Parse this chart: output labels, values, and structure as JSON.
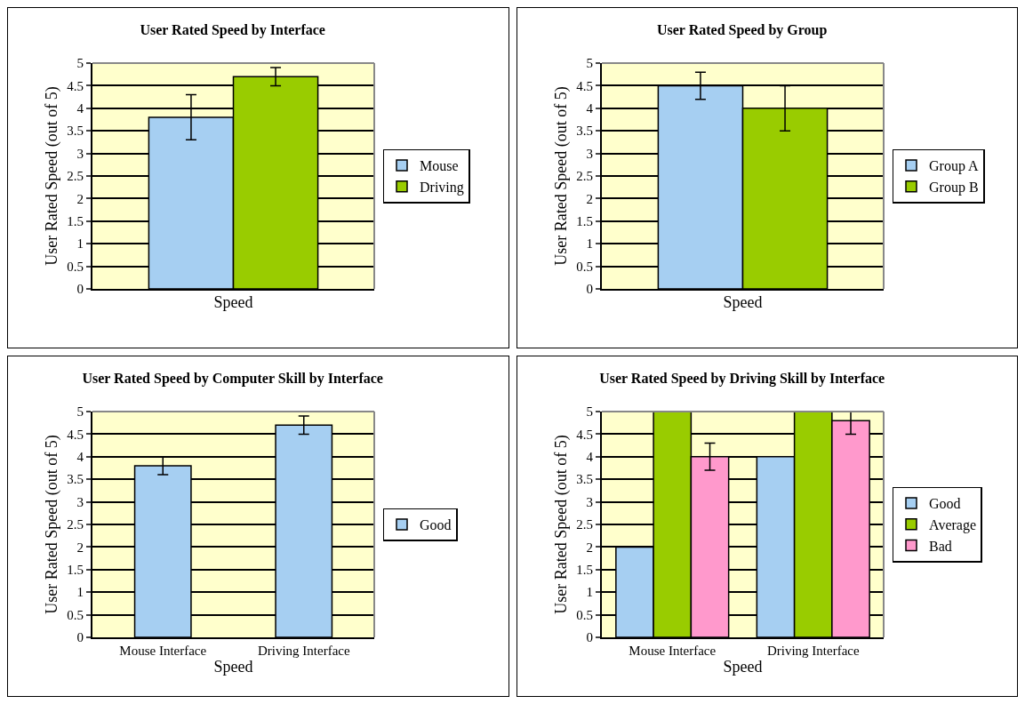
{
  "chart_data": [
    {
      "type": "bar",
      "title": "User Rated Speed by Interface",
      "xlabel": "Speed",
      "ylabel": "User Rated Speed (out of 5)",
      "categories": [
        null
      ],
      "series": [
        {
          "name": "Mouse",
          "color": "#a6cff2",
          "values": [
            3.8
          ],
          "errors": [
            0.5
          ]
        },
        {
          "name": "Driving",
          "color": "#99cc00",
          "values": [
            4.7
          ],
          "errors": [
            0.2
          ]
        }
      ],
      "ylim": [
        0,
        5
      ],
      "yticks": [
        0,
        0.5,
        1,
        1.5,
        2,
        2.5,
        3,
        3.5,
        4,
        4.5,
        5
      ],
      "grid": "y",
      "legend": "right"
    },
    {
      "type": "bar",
      "title": "User Rated Speed by Group",
      "xlabel": "Speed",
      "ylabel": "User Rated Speed (out of 5)",
      "categories": [
        null
      ],
      "series": [
        {
          "name": "Group A",
          "color": "#a6cff2",
          "values": [
            4.5
          ],
          "errors": [
            0.3
          ]
        },
        {
          "name": "Group B",
          "color": "#99cc00",
          "values": [
            4.0
          ],
          "errors": [
            0.5
          ]
        }
      ],
      "ylim": [
        0,
        5
      ],
      "yticks": [
        0,
        0.5,
        1,
        1.5,
        2,
        2.5,
        3,
        3.5,
        4,
        4.5,
        5
      ],
      "grid": "y",
      "legend": "right"
    },
    {
      "type": "bar",
      "title": "User Rated Speed by Computer Skill by Interface",
      "xlabel": "Speed",
      "ylabel": "User Rated Speed (out of 5)",
      "categories": [
        "Mouse Interface",
        "Driving Interface"
      ],
      "series": [
        {
          "name": "Good",
          "color": "#a6cff2",
          "values": [
            3.8,
            4.7
          ],
          "errors": [
            0.2,
            0.2
          ]
        }
      ],
      "ylim": [
        0,
        5
      ],
      "yticks": [
        0,
        0.5,
        1,
        1.5,
        2,
        2.5,
        3,
        3.5,
        4,
        4.5,
        5
      ],
      "grid": "y",
      "legend": "right"
    },
    {
      "type": "bar",
      "title": "User Rated Speed by Driving Skill by Interface",
      "xlabel": "Speed",
      "ylabel": "User Rated Speed (out of 5)",
      "categories": [
        "Mouse Interface",
        "Driving Interface"
      ],
      "series": [
        {
          "name": "Good",
          "color": "#a6cff2",
          "values": [
            2,
            4
          ],
          "errors": [
            null,
            null
          ]
        },
        {
          "name": "Average",
          "color": "#99cc00",
          "values": [
            5,
            5
          ],
          "errors": [
            null,
            null
          ]
        },
        {
          "name": "Bad",
          "color": "#ff99cc",
          "values": [
            4,
            4.8
          ],
          "errors": [
            0.3,
            0.3
          ]
        }
      ],
      "ylim": [
        0,
        5
      ],
      "yticks": [
        0,
        0.5,
        1,
        1.5,
        2,
        2.5,
        3,
        3.5,
        4,
        4.5,
        5
      ],
      "grid": "y",
      "legend": "right"
    }
  ]
}
